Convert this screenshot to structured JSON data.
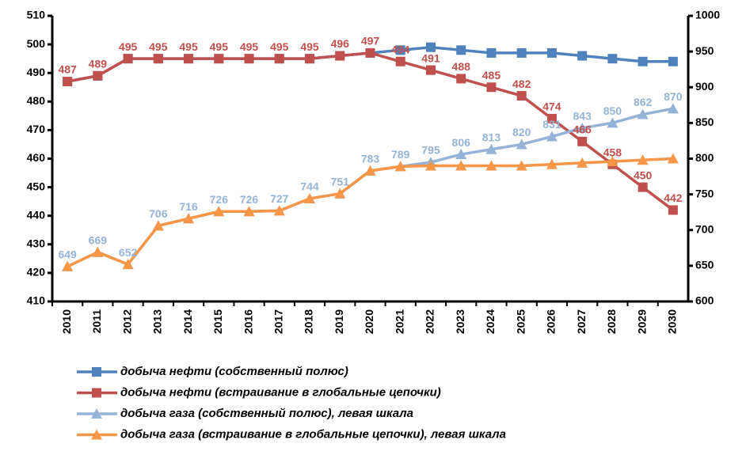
{
  "chart_data": {
    "type": "line",
    "categories": [
      "2010",
      "2011",
      "2012",
      "2013",
      "2014",
      "2015",
      "2016",
      "2017",
      "2018",
      "2019",
      "2020",
      "2021",
      "2022",
      "2023",
      "2024",
      "2025",
      "2026",
      "2027",
      "2028",
      "2029",
      "2030"
    ],
    "ylim": [
      410,
      510
    ],
    "yticks": [
      410,
      420,
      430,
      440,
      450,
      460,
      470,
      480,
      490,
      500,
      510
    ],
    "y2lim": [
      600,
      1000
    ],
    "y2ticks": [
      600,
      650,
      700,
      750,
      800,
      850,
      900,
      950,
      1000
    ],
    "series": [
      {
        "name": "добыча нефти (собственный полюс)",
        "color": "#4f81bd",
        "marker": "square",
        "values": [
          487,
          489,
          495,
          495,
          495,
          495,
          495,
          495,
          495,
          496,
          497,
          498,
          499,
          498,
          497,
          497,
          497,
          496,
          495,
          494,
          494
        ]
      },
      {
        "name": "добыча нефти (встраивание в глобальные цепочки)",
        "color": "#c0504d",
        "marker": "square",
        "values": [
          487,
          489,
          495,
          495,
          495,
          495,
          495,
          495,
          495,
          496,
          497,
          494,
          491,
          488,
          485,
          482,
          474,
          466,
          458,
          450,
          442
        ]
      },
      {
        "name": "добыча газа (собственный полюс), левая шкала",
        "color": "#95b3d7",
        "marker": "triangle",
        "axis": "y2",
        "values": [
          649,
          669,
          652,
          706,
          716,
          726,
          726,
          727,
          744,
          751,
          783,
          789,
          795,
          806,
          813,
          820,
          831,
          843,
          850,
          862,
          870
        ]
      },
      {
        "name": "добыча газа (встраивание в глобальные цепочки), левая шкала",
        "color": "#f79646",
        "marker": "triangle",
        "axis": "y2",
        "values": [
          649,
          669,
          652,
          706,
          716,
          726,
          726,
          727,
          744,
          751,
          783,
          789,
          790,
          790,
          790,
          790,
          792,
          794,
          796,
          798,
          800
        ]
      }
    ]
  }
}
